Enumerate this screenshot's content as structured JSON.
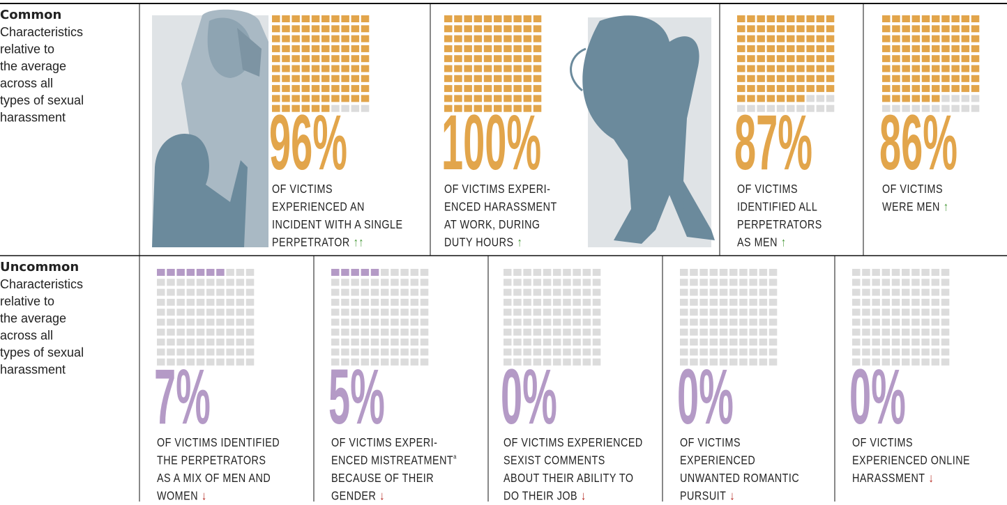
{
  "rows": [
    {
      "heading": "Common",
      "description": [
        "Characteristics",
        "relative to",
        "the average",
        "across all",
        "types of sexual",
        "harassment"
      ],
      "color": "#e2a54b",
      "arrow_color": "#4a9a3c",
      "cells": [
        {
          "value": 96,
          "value_label": "96%",
          "lines": [
            "OF VICTIMS",
            "EXPERIENCED AN",
            "INCIDENT WITH A SINGLE",
            "PERPETRATOR"
          ],
          "arrows": "↑↑"
        },
        {
          "value": 100,
          "value_label": "100%",
          "lines": [
            "OF VICTIMS EXPERI-",
            "ENCED HARASSMENT",
            "AT WORK, DURING",
            "DUTY HOURS"
          ],
          "arrows": "↑"
        },
        {
          "value": 87,
          "value_label": "87%",
          "lines": [
            "OF VICTIMS",
            "IDENTIFIED ALL",
            "PERPETRATORS",
            "AS MEN"
          ],
          "arrows": "↑"
        },
        {
          "value": 86,
          "value_label": "86%",
          "lines": [
            "OF VICTIMS",
            "WERE MEN"
          ],
          "arrows": "↑"
        }
      ]
    },
    {
      "heading": "Uncommon",
      "description": [
        "Characteristics",
        "relative to",
        "the average",
        "across all",
        "types of sexual",
        "harassment"
      ],
      "color": "#b49ac6",
      "arrow_color": "#b3261e",
      "cells": [
        {
          "value": 7,
          "value_label": "7%",
          "lines": [
            "OF VICTIMS IDENTIFIED",
            "THE PERPETRATORS",
            "AS A MIX OF MEN AND",
            "WOMEN"
          ],
          "arrows": "↓"
        },
        {
          "value": 5,
          "value_label": "5%",
          "lines": [
            "OF VICTIMS EXPERI-",
            "ENCED MISTREATMENT",
            "BECAUSE OF THEIR",
            "GENDER"
          ],
          "arrows": "↓",
          "footnote": "a"
        },
        {
          "value": 0,
          "value_label": "0%",
          "lines": [
            "OF VICTIMS EXPERIENCED",
            "SEXIST COMMENTS",
            "ABOUT THEIR ABILITY TO",
            "DO THEIR JOB"
          ],
          "arrows": "↓"
        },
        {
          "value": 0,
          "value_label": "0%",
          "lines": [
            "OF VICTIMS",
            "EXPERIENCED",
            "UNWANTED ROMANTIC",
            "PURSUIT"
          ],
          "arrows": "↓"
        },
        {
          "value": 0,
          "value_label": "0%",
          "lines": [
            "OF VICTIMS",
            "EXPERIENCED ONLINE",
            "HARASSMENT"
          ],
          "arrows": "↓"
        }
      ]
    }
  ]
}
